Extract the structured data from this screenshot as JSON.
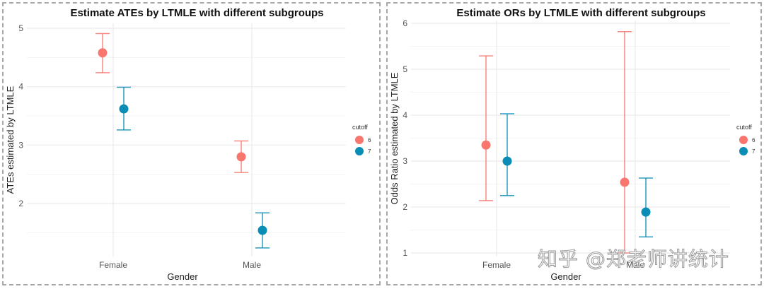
{
  "watermark": "知乎 @郑老师讲统计",
  "colors": {
    "cutoff_6": "#F8766D",
    "cutoff_7": "#0A8DB5",
    "grid": "#EBEBEB"
  },
  "chart_data": [
    {
      "type": "scatter",
      "subtype": "errorbar",
      "title": "Estimate ATEs by LTMLE with different subgroups",
      "xlabel": "Gender",
      "ylabel": "ATEs estimated by LTMLE",
      "categories": [
        "Female",
        "Male"
      ],
      "ylim": [
        1.2,
        5.05
      ],
      "yticks": [
        2,
        3,
        4,
        5
      ],
      "grid": true,
      "legend": {
        "title": "cutoff",
        "position": "right",
        "entries": [
          "6",
          "7"
        ]
      },
      "series": [
        {
          "name": "6",
          "values": [
            4.58,
            2.8
          ],
          "lower": [
            4.24,
            2.53
          ],
          "upper": [
            4.91,
            3.07
          ]
        },
        {
          "name": "7",
          "values": [
            3.62,
            1.54
          ],
          "lower": [
            3.26,
            1.24
          ],
          "upper": [
            3.99,
            1.84
          ]
        }
      ]
    },
    {
      "type": "scatter",
      "subtype": "errorbar",
      "title": "Estimate ORs by LTMLE with different subgroups",
      "xlabel": "Gender",
      "ylabel": "Odds Ratio estimated by LTMLE",
      "categories": [
        "Female",
        "Male"
      ],
      "ylim": [
        1.0,
        6.0
      ],
      "yticks": [
        1,
        2,
        3,
        4,
        5,
        6
      ],
      "grid": true,
      "legend": {
        "title": "cutoff",
        "position": "right",
        "entries": [
          "6",
          "7"
        ]
      },
      "series": [
        {
          "name": "6",
          "values": [
            3.35,
            2.54
          ],
          "lower": [
            2.14,
            1.0
          ],
          "upper": [
            5.29,
            5.82
          ]
        },
        {
          "name": "7",
          "values": [
            3.0,
            1.89
          ],
          "lower": [
            2.25,
            1.35
          ],
          "upper": [
            4.03,
            2.63
          ]
        }
      ]
    }
  ]
}
